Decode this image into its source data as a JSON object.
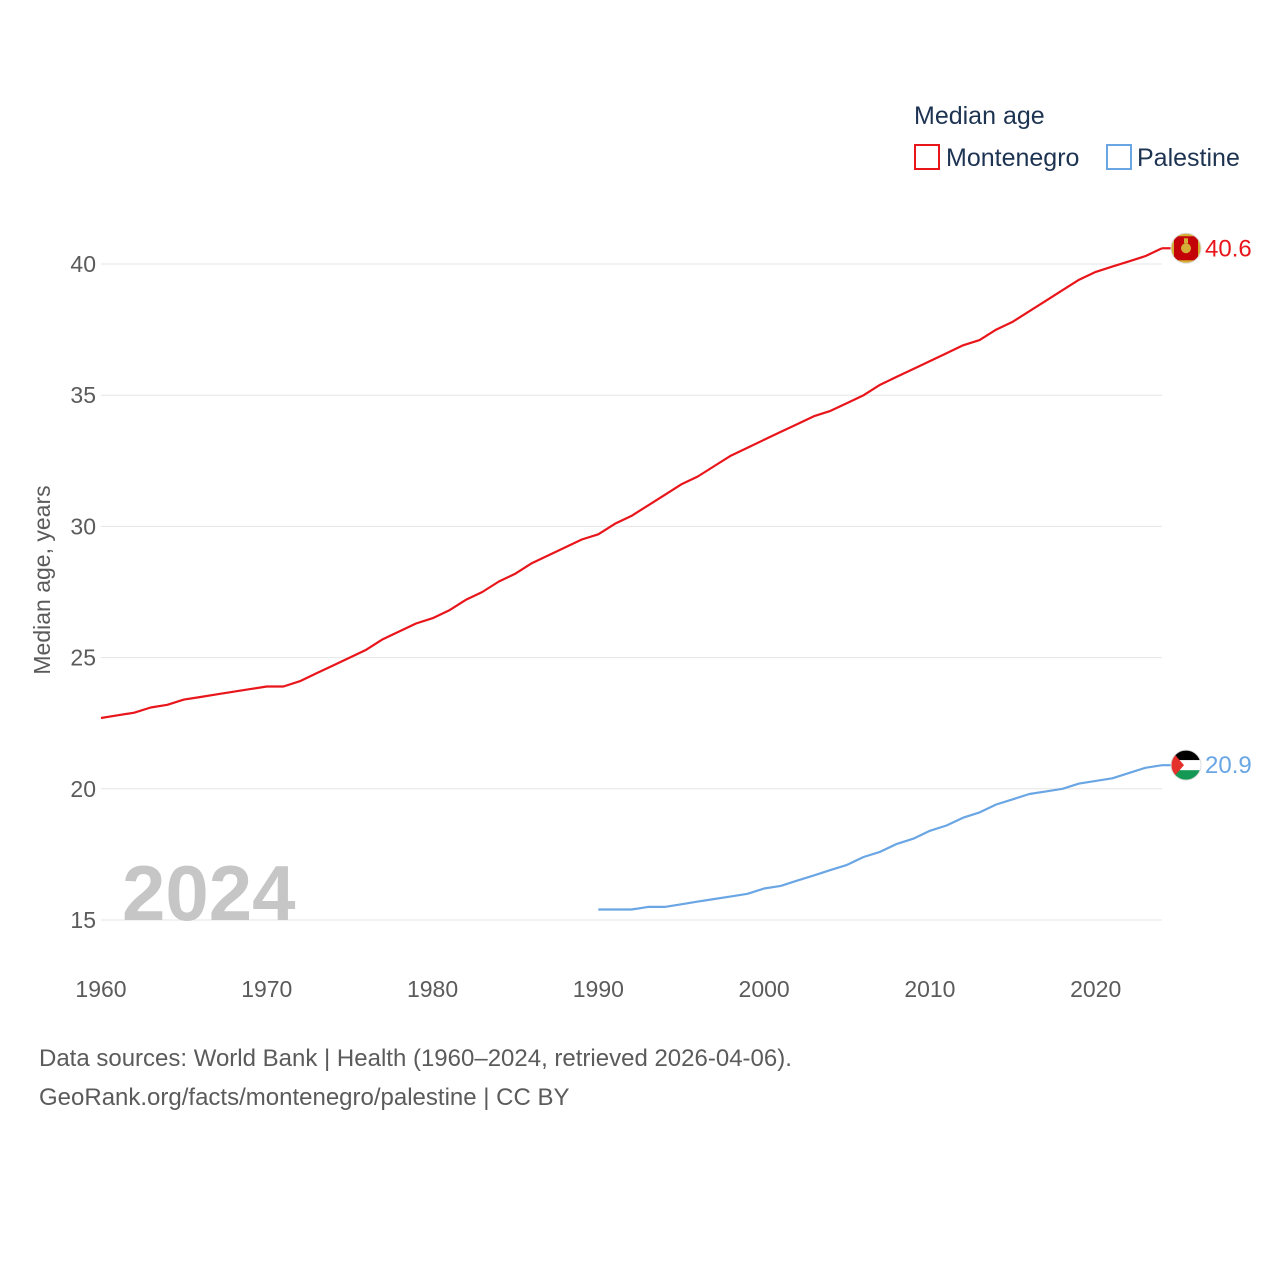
{
  "chart_data": {
    "type": "line",
    "title": "",
    "legend_title": "Median age",
    "legend_placement": "top-right",
    "ylabel": "Median age, years",
    "xlabel": "",
    "xlim": [
      1960,
      2024
    ],
    "ylim": [
      13.5,
      42
    ],
    "yticks": [
      15,
      20,
      25,
      30,
      35,
      40
    ],
    "xticks": [
      1960,
      1970,
      1980,
      1990,
      2000,
      2010,
      2020
    ],
    "grid": true,
    "year_label": "2024",
    "series": [
      {
        "name": "Montenegro",
        "color": "#e8151b",
        "end_label": "40.6",
        "flag_icon": "montenegro-flag-icon",
        "x": [
          1960,
          1961,
          1962,
          1963,
          1964,
          1965,
          1966,
          1967,
          1968,
          1969,
          1970,
          1971,
          1972,
          1973,
          1974,
          1975,
          1976,
          1977,
          1978,
          1979,
          1980,
          1981,
          1982,
          1983,
          1984,
          1985,
          1986,
          1987,
          1988,
          1989,
          1990,
          1991,
          1992,
          1993,
          1994,
          1995,
          1996,
          1997,
          1998,
          1999,
          2000,
          2001,
          2002,
          2003,
          2004,
          2005,
          2006,
          2007,
          2008,
          2009,
          2010,
          2011,
          2012,
          2013,
          2014,
          2015,
          2016,
          2017,
          2018,
          2019,
          2020,
          2021,
          2022,
          2023,
          2024
        ],
        "values": [
          22.7,
          22.8,
          22.9,
          23.1,
          23.2,
          23.4,
          23.5,
          23.6,
          23.7,
          23.8,
          23.9,
          23.9,
          24.1,
          24.4,
          24.7,
          25.0,
          25.3,
          25.7,
          26.0,
          26.3,
          26.5,
          26.8,
          27.2,
          27.5,
          27.9,
          28.2,
          28.6,
          28.9,
          29.2,
          29.5,
          29.7,
          30.1,
          30.4,
          30.8,
          31.2,
          31.6,
          31.9,
          32.3,
          32.7,
          33.0,
          33.3,
          33.6,
          33.9,
          34.2,
          34.4,
          34.7,
          35.0,
          35.4,
          35.7,
          36.0,
          36.3,
          36.6,
          36.9,
          37.1,
          37.5,
          37.8,
          38.2,
          38.6,
          39.0,
          39.4,
          39.7,
          39.9,
          40.1,
          40.3,
          40.6
        ]
      },
      {
        "name": "Palestine",
        "color": "#6aa6e4",
        "end_label": "20.9",
        "flag_icon": "palestine-flag-icon",
        "x": [
          1990,
          1991,
          1992,
          1993,
          1994,
          1995,
          1996,
          1997,
          1998,
          1999,
          2000,
          2001,
          2002,
          2003,
          2004,
          2005,
          2006,
          2007,
          2008,
          2009,
          2010,
          2011,
          2012,
          2013,
          2014,
          2015,
          2016,
          2017,
          2018,
          2019,
          2020,
          2021,
          2022,
          2023,
          2024
        ],
        "values": [
          15.4,
          15.4,
          15.4,
          15.5,
          15.5,
          15.6,
          15.7,
          15.8,
          15.9,
          16.0,
          16.2,
          16.3,
          16.5,
          16.7,
          16.9,
          17.1,
          17.4,
          17.6,
          17.9,
          18.1,
          18.4,
          18.6,
          18.9,
          19.1,
          19.4,
          19.6,
          19.8,
          19.9,
          20.0,
          20.2,
          20.3,
          20.4,
          20.6,
          20.8,
          20.9
        ]
      }
    ]
  },
  "footer": {
    "sources": "Data sources: World Bank | Health (1960–2024, retrieved 2026-04-06).",
    "credit": "GeoRank.org/facts/montenegro/palestine | CC BY"
  }
}
